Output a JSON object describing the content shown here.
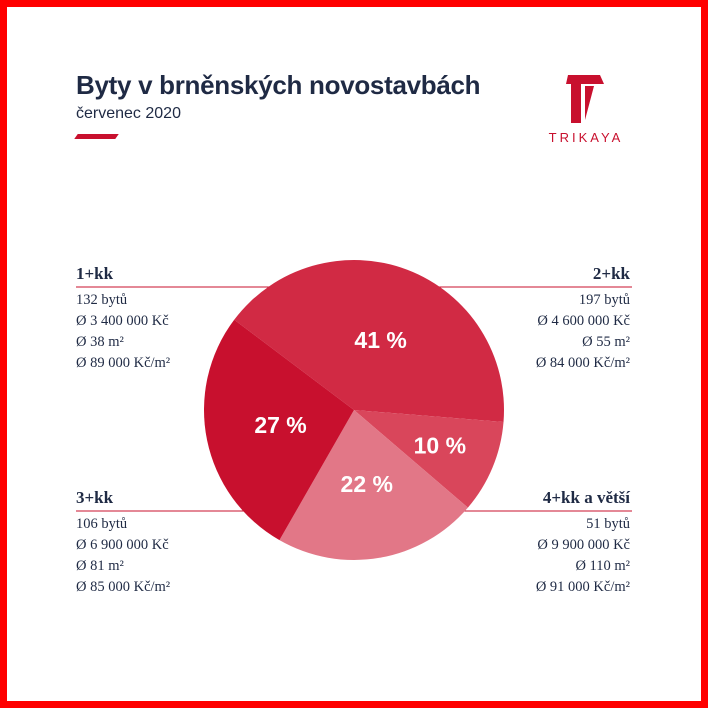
{
  "header": {
    "title": "Byty v brněnských novostavbách",
    "subtitle": "červenec 2020"
  },
  "logo": {
    "text": "TRIKAYA",
    "icon": "trikaya-t-logo-icon"
  },
  "colors": {
    "brand": "#c8102e",
    "text": "#1f2a44",
    "frame": "#ff0000",
    "slice_2kk": "#d12a44",
    "slice_4kk": "#d9465b",
    "slice_3kk": "#e27787",
    "slice_1kk": "#c8102e"
  },
  "categories": [
    {
      "name": "1+kk",
      "count": "132 bytů",
      "price": "Ø 3 400 000 Kč",
      "area": "Ø 38 m²",
      "price_m2": "Ø 89 000 Kč/m²"
    },
    {
      "name": "2+kk",
      "count": "197 bytů",
      "price": "Ø 4 600 000 Kč",
      "area": "Ø 55 m²",
      "price_m2": "Ø 84 000 Kč/m²"
    },
    {
      "name": "3+kk",
      "count": "106 bytů",
      "price": "Ø 6 900 000 Kč",
      "area": "Ø 81 m²",
      "price_m2": "Ø 85 000 Kč/m²"
    },
    {
      "name": "4+kk a větší",
      "count": "51 bytů",
      "price": "Ø 9 900 000 Kč",
      "area": "Ø 110 m²",
      "price_m2": "Ø 91 000 Kč/m²"
    }
  ],
  "chart_data": {
    "type": "pie",
    "title": "Byty v brněnských novostavbách",
    "subtitle": "červenec 2020",
    "slices": [
      {
        "label": "2+kk",
        "value": 41,
        "display": "41 %",
        "color": "#d12a44"
      },
      {
        "label": "4+kk a větší",
        "value": 10,
        "display": "10 %",
        "color": "#d9465b"
      },
      {
        "label": "3+kk",
        "value": 22,
        "display": "22 %",
        "color": "#e27787"
      },
      {
        "label": "1+kk",
        "value": 27,
        "display": "27 %",
        "color": "#c8102e"
      }
    ]
  }
}
